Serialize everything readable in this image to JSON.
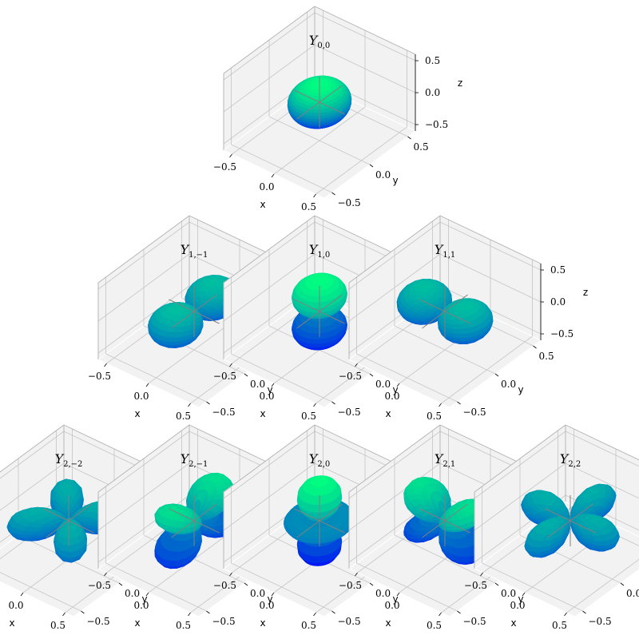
{
  "chart_data": {
    "type": "3d-surface",
    "colormap": {
      "name": "winter",
      "low": "#0000ff",
      "high": "#00ff80"
    },
    "panel_colors": {
      "pane": "#f2f2f2",
      "grid": "#c9c9c9",
      "axis_line": "#000000",
      "origin_lines": "#808080"
    },
    "axes": {
      "xlabel": "x",
      "ylabel": "y",
      "zlabel": "z",
      "xlim": [
        -0.6,
        0.6
      ],
      "ylim": [
        -0.6,
        0.6
      ],
      "zlim": [
        -0.6,
        0.6
      ],
      "ticks": [
        -0.5,
        0.0,
        0.5
      ],
      "tick_labels": [
        "−0.5",
        "0.0",
        "0.5"
      ],
      "grid": true
    },
    "plots": [
      {
        "title_main": "Y",
        "title_sub": "0,0",
        "l": 0,
        "m": 0
      },
      {
        "title_main": "Y",
        "title_sub": "1,−1",
        "l": 1,
        "m": -1
      },
      {
        "title_main": "Y",
        "title_sub": "1,0",
        "l": 1,
        "m": 0
      },
      {
        "title_main": "Y",
        "title_sub": "1,1",
        "l": 1,
        "m": 1
      },
      {
        "title_main": "Y",
        "title_sub": "2,−2",
        "l": 2,
        "m": -2
      },
      {
        "title_main": "Y",
        "title_sub": "2,−1",
        "l": 2,
        "m": -1
      },
      {
        "title_main": "Y",
        "title_sub": "2,0",
        "l": 2,
        "m": 0
      },
      {
        "title_main": "Y",
        "title_sub": "2,1",
        "l": 2,
        "m": 1
      },
      {
        "title_main": "Y",
        "title_sub": "2,2",
        "l": 2,
        "m": 2
      }
    ]
  }
}
